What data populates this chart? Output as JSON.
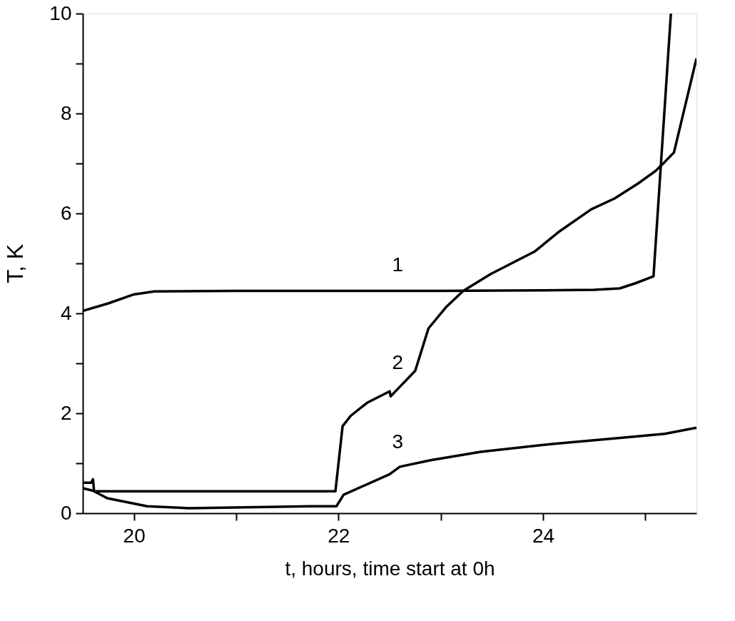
{
  "chart_data": {
    "type": "line",
    "xlabel": "t, hours, time start at 0h",
    "ylabel": "T, K",
    "xlim": [
      19.5,
      25.5
    ],
    "ylim": [
      0,
      10
    ],
    "xticks": [
      20,
      {
        "value": 21,
        "label": null
      },
      22,
      {
        "value": 23,
        "label": null
      },
      24,
      {
        "value": 25,
        "label": null
      }
    ],
    "yticks": [
      0,
      {
        "value": 1,
        "label": null
      },
      2,
      {
        "value": 3,
        "label": null
      },
      4,
      {
        "value": 5,
        "label": null
      },
      6,
      {
        "value": 7,
        "label": null
      },
      8,
      {
        "value": 9,
        "label": null
      },
      10
    ],
    "grid": false,
    "marker": "none",
    "line_style": "solid",
    "series": [
      {
        "name": "1",
        "color": "#000000",
        "x": [
          19.5,
          19.75,
          20.0,
          20.2,
          21.0,
          22.0,
          23.0,
          24.0,
          24.5,
          24.75,
          24.9,
          25.08,
          25.25
        ],
        "values": [
          4.05,
          4.2,
          4.38,
          4.44,
          4.45,
          4.45,
          4.45,
          4.46,
          4.47,
          4.5,
          4.6,
          4.74,
          10
        ]
      },
      {
        "name": "2",
        "color": "#000000",
        "x": [
          19.5,
          19.58,
          19.6,
          19.61,
          20.0,
          21.0,
          21.97,
          22.04,
          22.12,
          22.28,
          22.5,
          22.51,
          22.6,
          22.75,
          22.88,
          23.05,
          23.22,
          23.49,
          23.92,
          24.16,
          24.47,
          24.7,
          24.93,
          25.1,
          25.19,
          25.28,
          25.5
        ],
        "values": [
          0.61,
          0.61,
          0.68,
          0.44,
          0.44,
          0.44,
          0.44,
          1.74,
          1.95,
          2.21,
          2.44,
          2.34,
          2.53,
          2.85,
          3.7,
          4.12,
          4.45,
          4.79,
          5.24,
          5.64,
          6.08,
          6.3,
          6.6,
          6.85,
          7.03,
          7.22,
          9.1
        ]
      },
      {
        "name": "3",
        "color": "#000000",
        "x": [
          19.5,
          19.6,
          19.74,
          20.13,
          20.54,
          21.73,
          21.98,
          22.05,
          22.5,
          22.6,
          22.9,
          23.39,
          24.11,
          24.83,
          25.19,
          25.5
        ],
        "values": [
          0.5,
          0.45,
          0.3,
          0.14,
          0.1,
          0.14,
          0.14,
          0.37,
          0.78,
          0.93,
          1.06,
          1.23,
          1.39,
          1.52,
          1.59,
          1.71
        ]
      }
    ]
  }
}
